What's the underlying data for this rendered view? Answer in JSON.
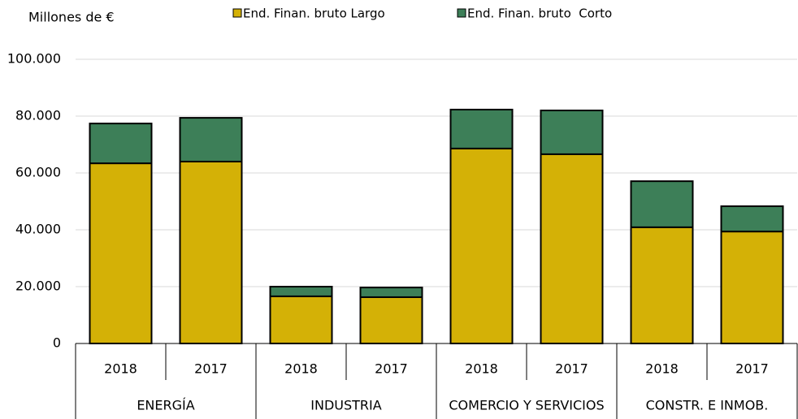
{
  "chart_data": {
    "type": "stacked_bar",
    "y_label": "Millones de €",
    "categories": [
      "2018",
      "2017",
      "2018",
      "2017",
      "2018",
      "2017",
      "2018",
      "2017"
    ],
    "groups": [
      "ENERGÍA",
      "INDUSTRIA",
      "COMERCIO Y SERVICIOS",
      "CONSTR. E INMOB."
    ],
    "series": [
      {
        "name": "End. Finan. bruto Largo",
        "color": "#d4b106",
        "values": [
          63400,
          64000,
          16600,
          16300,
          68600,
          66600,
          40900,
          39400
        ]
      },
      {
        "name": "End. Finan. bruto  Corto",
        "color": "#3d7f58",
        "values": [
          14000,
          15400,
          3400,
          3400,
          13700,
          15400,
          16200,
          8900
        ]
      }
    ],
    "ylim": [
      0,
      100000
    ],
    "yticks": [
      0,
      {
        "value": 20000,
        "label": "20.000"
      },
      {
        "value": 40000,
        "label": "40.000"
      },
      {
        "value": 60000,
        "label": "60.000"
      },
      {
        "value": 80000,
        "label": "80.000"
      },
      {
        "value": 100000,
        "label": "100.000"
      }
    ],
    "grid": true
  }
}
